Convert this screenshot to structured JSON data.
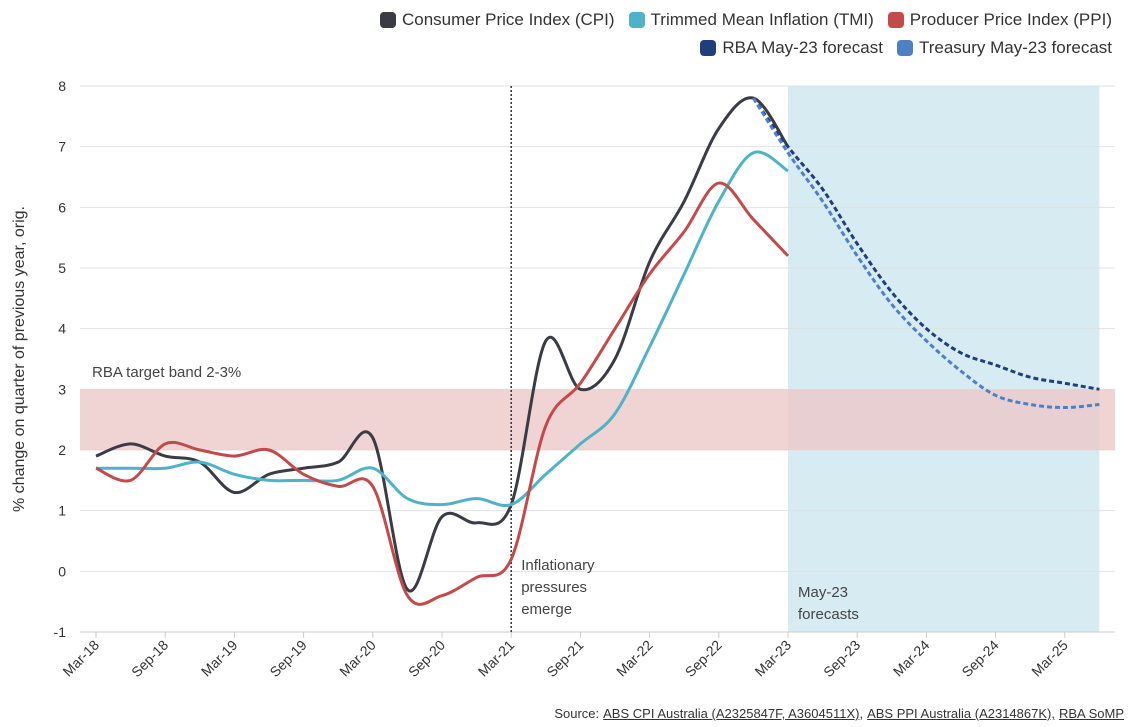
{
  "chart_data": {
    "type": "line",
    "y_label": "% change on quarter of previous year, orig.",
    "categories": [
      "Mar-18",
      null,
      "Sep-18",
      null,
      "Mar-19",
      null,
      "Sep-19",
      null,
      "Mar-20",
      null,
      "Sep-20",
      null,
      "Mar-21",
      null,
      "Sep-21",
      null,
      "Mar-22",
      null,
      "Sep-22",
      null,
      "Mar-23",
      null,
      "Sep-23",
      null,
      "Mar-24",
      null,
      "Sep-24",
      null,
      "Mar-25",
      null
    ],
    "series": [
      {
        "name": "Consumer Price Index (CPI)",
        "color": "#3a3b45",
        "style": "solid",
        "values": [
          1.9,
          2.1,
          1.9,
          1.8,
          1.3,
          1.6,
          1.7,
          1.8,
          2.2,
          -0.3,
          0.9,
          0.8,
          1.1,
          3.8,
          3.0,
          3.5,
          5.1,
          6.1,
          7.3,
          7.8,
          7.0,
          null,
          null,
          null,
          null,
          null,
          null,
          null,
          null,
          null
        ]
      },
      {
        "name": "Trimmed Mean Inflation (TMI)",
        "color": "#4fb3c8",
        "style": "solid",
        "values": [
          1.7,
          1.7,
          1.7,
          1.8,
          1.6,
          1.5,
          1.5,
          1.5,
          1.7,
          1.2,
          1.1,
          1.2,
          1.1,
          1.6,
          2.1,
          2.6,
          3.7,
          4.9,
          6.1,
          6.9,
          6.6,
          null,
          null,
          null,
          null,
          null,
          null,
          null,
          null,
          null
        ]
      },
      {
        "name": "Producer Price Index (PPI)",
        "color": "#c34a4a",
        "style": "solid",
        "values": [
          1.7,
          1.5,
          2.1,
          2.0,
          1.9,
          2.0,
          1.6,
          1.4,
          1.4,
          -0.4,
          -0.4,
          -0.1,
          0.2,
          2.4,
          3.1,
          4.0,
          4.9,
          5.6,
          6.4,
          5.8,
          5.2,
          null,
          null,
          null,
          null,
          null,
          null,
          null,
          null,
          null
        ]
      },
      {
        "name": "RBA May-23 forecast",
        "color": "#1f3f7a",
        "style": "dashed",
        "values": [
          null,
          null,
          null,
          null,
          null,
          null,
          null,
          null,
          null,
          null,
          null,
          null,
          null,
          null,
          null,
          null,
          null,
          null,
          null,
          7.8,
          7.0,
          6.3,
          5.4,
          4.6,
          4.0,
          3.6,
          3.4,
          3.2,
          3.1,
          3.0
        ]
      },
      {
        "name": "Treasury May-23 forecast",
        "color": "#4f7fc4",
        "style": "dashed",
        "values": [
          null,
          null,
          null,
          null,
          null,
          null,
          null,
          null,
          null,
          null,
          null,
          null,
          null,
          null,
          null,
          null,
          null,
          null,
          null,
          7.8,
          6.9,
          6.1,
          5.2,
          4.4,
          3.8,
          3.3,
          2.9,
          2.75,
          2.7,
          2.75
        ]
      }
    ],
    "ylim": [
      -1,
      8
    ],
    "yticks": [
      -1,
      0,
      1,
      2,
      3,
      4,
      5,
      6,
      7,
      8
    ],
    "grid": true,
    "target_band": {
      "label": "RBA target band 2-3%",
      "range": [
        2,
        3
      ],
      "color": "#ecc9c9"
    },
    "event_line": {
      "label": "Inflationary pressures emerge",
      "at": "Mar-21"
    },
    "forecast_region": {
      "label": "May-23 forecasts",
      "from": "Mar-23",
      "color": "#d6ebf2"
    },
    "source_label": "Source:",
    "source_links": [
      "ABS CPI Australia (A2325847F, A3604511X),",
      "ABS PPI Australia (A2314867K),",
      "RBA SoMP"
    ]
  }
}
